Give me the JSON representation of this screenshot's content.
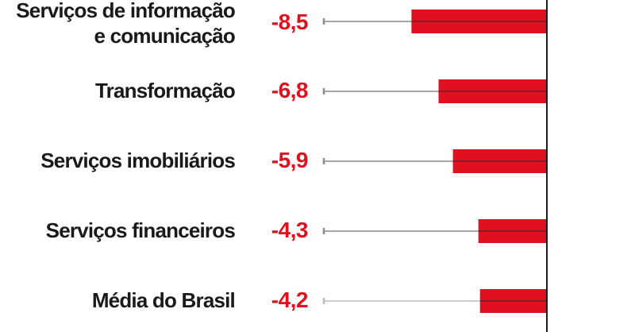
{
  "chart_data": {
    "type": "bar",
    "orientation": "horizontal",
    "categories": [
      "Serviços de informação\ne comunicação",
      "Transformação",
      "Serviços imobiliários",
      "Serviços financeiros",
      "Média do Brasil"
    ],
    "values": [
      -8.5,
      -6.8,
      -5.9,
      -4.3,
      -4.2
    ],
    "value_labels": [
      "-8,5",
      "-6,8",
      "-5,9",
      "-4,3",
      "-4,2"
    ],
    "xlim": [
      -14,
      0
    ],
    "colors": {
      "bar": "#e0101e",
      "value_text": "#e0101e",
      "category_text": "#1a1a1a",
      "axis": "#1a1a1a",
      "whisker": "#8a8a8a",
      "whisker_average": "#bdbdbd"
    }
  }
}
